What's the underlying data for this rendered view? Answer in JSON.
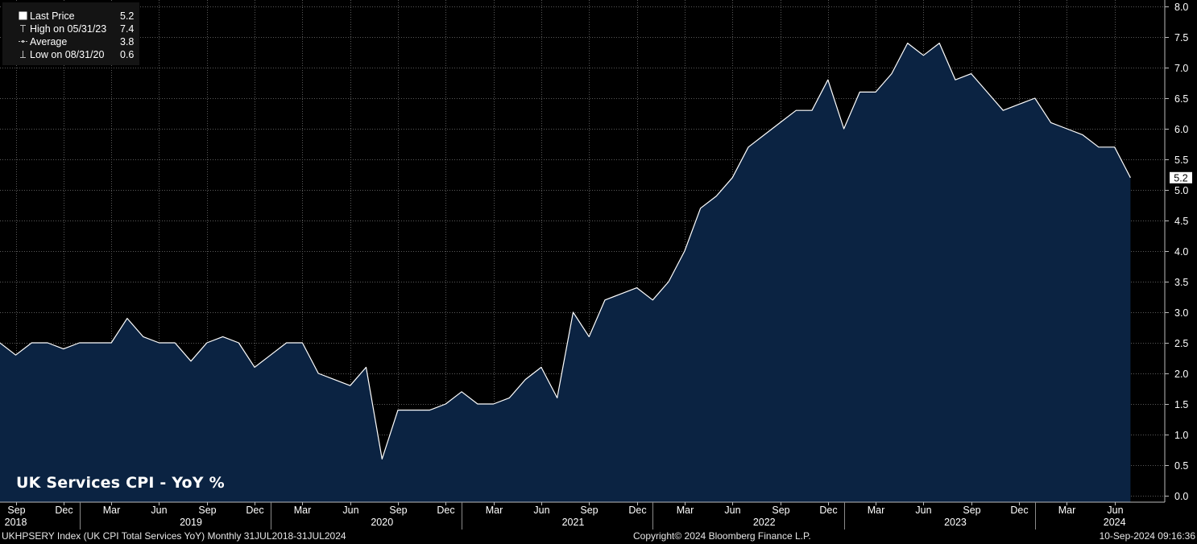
{
  "legend": {
    "items": [
      {
        "label": "Last Price",
        "value": "5.2"
      },
      {
        "label": "High on 05/31/23",
        "value": "7.4"
      },
      {
        "label": "Average",
        "value": "3.8"
      },
      {
        "label": "Low on 08/31/20",
        "value": "0.6"
      }
    ]
  },
  "chart_title": "UK Services CPI - YoY %",
  "footer": {
    "left": "UKHPSERY Index (UK CPI Total Services YoY)  Monthly 31JUL2018-31JUL2024",
    "center": "Copyright© 2024 Bloomberg Finance L.P.",
    "right": "10-Sep-2024 09:16:36"
  },
  "colors": {
    "background": "#000000",
    "area_fill": "#0b2342",
    "line": "#ffffff",
    "grid": "#5a5a5a"
  },
  "chart_data": {
    "type": "area",
    "title": "UK Services CPI - YoY %",
    "frequency": "Monthly",
    "x_start": "2018-07",
    "x_end": "2024-07",
    "values": [
      2.3,
      2.5,
      2.3,
      2.5,
      2.5,
      2.4,
      2.5,
      2.5,
      2.5,
      2.9,
      2.6,
      2.5,
      2.5,
      2.2,
      2.5,
      2.6,
      2.5,
      2.1,
      2.3,
      2.5,
      2.5,
      2.0,
      1.9,
      1.8,
      2.1,
      0.6,
      1.4,
      1.4,
      1.4,
      1.5,
      1.7,
      1.5,
      1.5,
      1.6,
      1.9,
      2.1,
      1.6,
      3.0,
      2.6,
      3.2,
      3.3,
      3.4,
      3.2,
      3.5,
      4.0,
      4.7,
      4.9,
      5.2,
      5.7,
      5.9,
      6.1,
      6.3,
      6.3,
      6.8,
      6.0,
      6.6,
      6.6,
      6.9,
      7.4,
      7.2,
      7.4,
      6.8,
      6.9,
      6.6,
      6.3,
      6.4,
      6.5,
      6.1,
      6.0,
      5.9,
      5.7,
      5.7,
      5.2
    ],
    "ylim": [
      0.0,
      8.0
    ],
    "y_ticks": [
      "0.0",
      "0.5",
      "1.0",
      "1.5",
      "2.0",
      "2.5",
      "3.0",
      "3.5",
      "4.0",
      "4.5",
      "5.0",
      "5.5",
      "6.0",
      "6.5",
      "7.0",
      "7.5",
      "8.0"
    ],
    "x_month_labels": [
      {
        "index": 2,
        "label": "Sep"
      },
      {
        "index": 5,
        "label": "Dec"
      },
      {
        "index": 8,
        "label": "Mar"
      },
      {
        "index": 11,
        "label": "Jun"
      },
      {
        "index": 14,
        "label": "Sep"
      },
      {
        "index": 17,
        "label": "Dec"
      },
      {
        "index": 20,
        "label": "Mar"
      },
      {
        "index": 23,
        "label": "Jun"
      },
      {
        "index": 26,
        "label": "Sep"
      },
      {
        "index": 29,
        "label": "Dec"
      },
      {
        "index": 32,
        "label": "Mar"
      },
      {
        "index": 35,
        "label": "Jun"
      },
      {
        "index": 38,
        "label": "Sep"
      },
      {
        "index": 41,
        "label": "Dec"
      },
      {
        "index": 44,
        "label": "Mar"
      },
      {
        "index": 47,
        "label": "Jun"
      },
      {
        "index": 50,
        "label": "Sep"
      },
      {
        "index": 53,
        "label": "Dec"
      },
      {
        "index": 56,
        "label": "Mar"
      },
      {
        "index": 59,
        "label": "Jun"
      },
      {
        "index": 62,
        "label": "Sep"
      },
      {
        "index": 65,
        "label": "Dec"
      },
      {
        "index": 68,
        "label": "Mar"
      },
      {
        "index": 71,
        "label": "Jun"
      }
    ],
    "x_year_labels": [
      {
        "index": 2,
        "label": "2018"
      },
      {
        "index": 13,
        "label": "2019"
      },
      {
        "index": 25,
        "label": "2020"
      },
      {
        "index": 37,
        "label": "2021"
      },
      {
        "index": 49,
        "label": "2022"
      },
      {
        "index": 61,
        "label": "2023"
      },
      {
        "index": 71,
        "label": "2024"
      }
    ],
    "year_separators": [
      6,
      18,
      30,
      42,
      54,
      66
    ],
    "last_value_label": "5.2",
    "grid": true,
    "legend_position": "top-left"
  }
}
